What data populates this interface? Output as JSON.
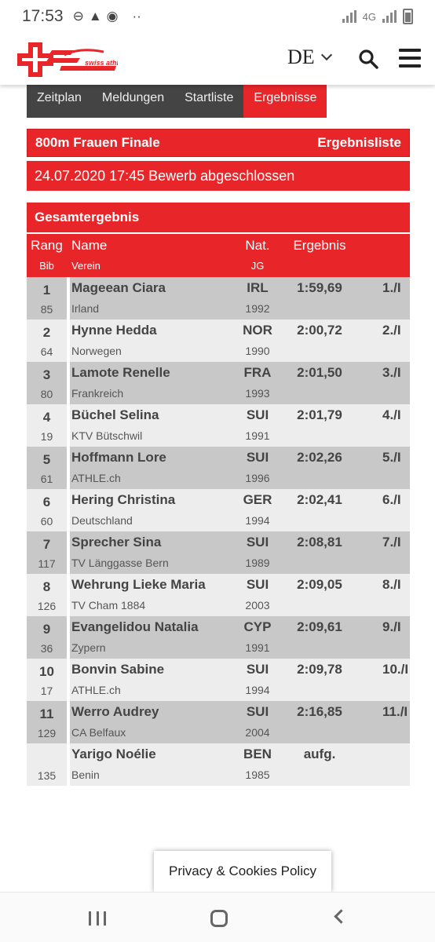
{
  "status": {
    "time": "17:53",
    "network": "4G"
  },
  "header": {
    "logo_text": "swiss athletics",
    "language": "DE"
  },
  "tabs": [
    {
      "label": "Zeitplan",
      "active": false
    },
    {
      "label": "Meldungen",
      "active": false
    },
    {
      "label": "Startliste",
      "active": false
    },
    {
      "label": "Ergebnisse",
      "active": true
    }
  ],
  "event": {
    "title": "800m Frauen Finale",
    "list_label": "Ergebnisliste",
    "status_line": "24.07.2020 17:45 Bewerb abgeschlossen",
    "section_title": "Gesamtergebnis"
  },
  "table": {
    "headers": {
      "rank": "Rang",
      "bib": "Bib",
      "name": "Name",
      "club": "Verein",
      "nat": "Nat.",
      "year": "JG",
      "result": "Ergebnis"
    },
    "rows": [
      {
        "rank": "1",
        "bib": "85",
        "name": "Mageean Ciara",
        "club": "Irland",
        "nat": "IRL",
        "year": "1992",
        "result": "1:59,69",
        "place": "1./I"
      },
      {
        "rank": "2",
        "bib": "64",
        "name": "Hynne Hedda",
        "club": "Norwegen",
        "nat": "NOR",
        "year": "1990",
        "result": "2:00,72",
        "place": "2./I"
      },
      {
        "rank": "3",
        "bib": "80",
        "name": "Lamote Renelle",
        "club": "Frankreich",
        "nat": "FRA",
        "year": "1993",
        "result": "2:01,50",
        "place": "3./I"
      },
      {
        "rank": "4",
        "bib": "19",
        "name": "Büchel Selina",
        "club": "KTV Bütschwil",
        "nat": "SUI",
        "year": "1991",
        "result": "2:01,79",
        "place": "4./I"
      },
      {
        "rank": "5",
        "bib": "61",
        "name": "Hoffmann Lore",
        "club": "ATHLE.ch",
        "nat": "SUI",
        "year": "1996",
        "result": "2:02,26",
        "place": "5./I"
      },
      {
        "rank": "6",
        "bib": "60",
        "name": "Hering Christina",
        "club": "Deutschland",
        "nat": "GER",
        "year": "1994",
        "result": "2:02,41",
        "place": "6./I"
      },
      {
        "rank": "7",
        "bib": "117",
        "name": "Sprecher Sina",
        "club": "TV Länggasse Bern",
        "nat": "SUI",
        "year": "1989",
        "result": "2:08,81",
        "place": "7./I"
      },
      {
        "rank": "8",
        "bib": "126",
        "name": "Wehrung Lieke Maria",
        "club": "TV Cham 1884",
        "nat": "SUI",
        "year": "2003",
        "result": "2:09,05",
        "place": "8./I"
      },
      {
        "rank": "9",
        "bib": "36",
        "name": "Evangelidou Natalia",
        "club": "Zypern",
        "nat": "CYP",
        "year": "1991",
        "result": "2:09,61",
        "place": "9./I"
      },
      {
        "rank": "10",
        "bib": "17",
        "name": "Bonvin Sabine",
        "club": "ATHLE.ch",
        "nat": "SUI",
        "year": "1994",
        "result": "2:09,78",
        "place": "10./I"
      },
      {
        "rank": "11",
        "bib": "129",
        "name": "Werro Audrey",
        "club": "CA Belfaux",
        "nat": "SUI",
        "year": "2004",
        "result": "2:16,85",
        "place": "11./I"
      },
      {
        "rank": "",
        "bib": "135",
        "name": "Yarigo Noélie",
        "club": "Benin",
        "nat": "BEN",
        "year": "1985",
        "result": "aufg.",
        "place": ""
      }
    ]
  },
  "privacy": {
    "label": "Privacy & Cookies Policy"
  },
  "colors": {
    "accent": "#e8262a",
    "tab_bg": "#444444",
    "row_dark": "#c8c8c8",
    "row_light": "#ededed"
  }
}
